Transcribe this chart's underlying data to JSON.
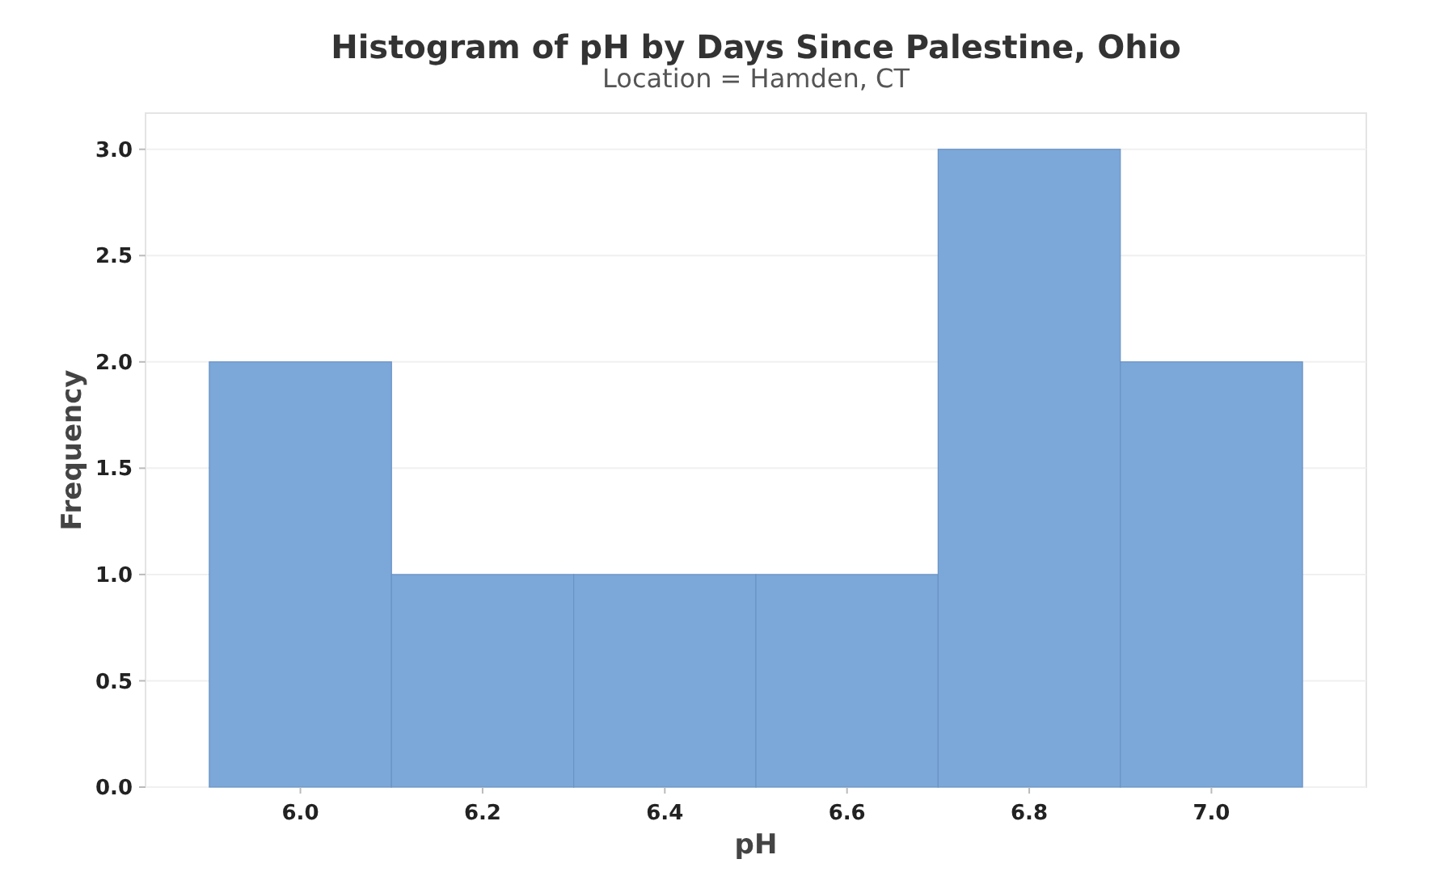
{
  "chart_data": {
    "type": "histogram",
    "title": "Histogram of pH by Days Since Palestine, Ohio",
    "subtitle": "Location = Hamden, CT",
    "xlabel": "pH",
    "ylabel": "Frequency",
    "bins": [
      5.9,
      6.1,
      6.3,
      6.5,
      6.7,
      6.9,
      7.1
    ],
    "values": [
      2,
      1,
      1,
      1,
      3,
      2
    ],
    "color": "#7ba7d9",
    "xlim": [
      5.83,
      7.17
    ],
    "ylim": [
      0,
      3.17
    ],
    "xticks": [
      {
        "value": 6.0,
        "label": "6.0"
      },
      {
        "value": 6.2,
        "label": "6.2"
      },
      {
        "value": 6.4,
        "label": "6.4"
      },
      {
        "value": 6.6,
        "label": "6.6"
      },
      {
        "value": 6.8,
        "label": "6.8"
      },
      {
        "value": 7.0,
        "label": "7.0"
      }
    ],
    "yticks": [
      {
        "value": 0,
        "label": "0.0"
      },
      {
        "value": 0.5,
        "label": "0.5"
      },
      {
        "value": 1,
        "label": "1.0"
      },
      {
        "value": 1.5,
        "label": "1.5"
      },
      {
        "value": 2,
        "label": "2.0"
      },
      {
        "value": 2.5,
        "label": "2.5"
      },
      {
        "value": 3,
        "label": "3.0"
      }
    ],
    "grid": "y"
  }
}
